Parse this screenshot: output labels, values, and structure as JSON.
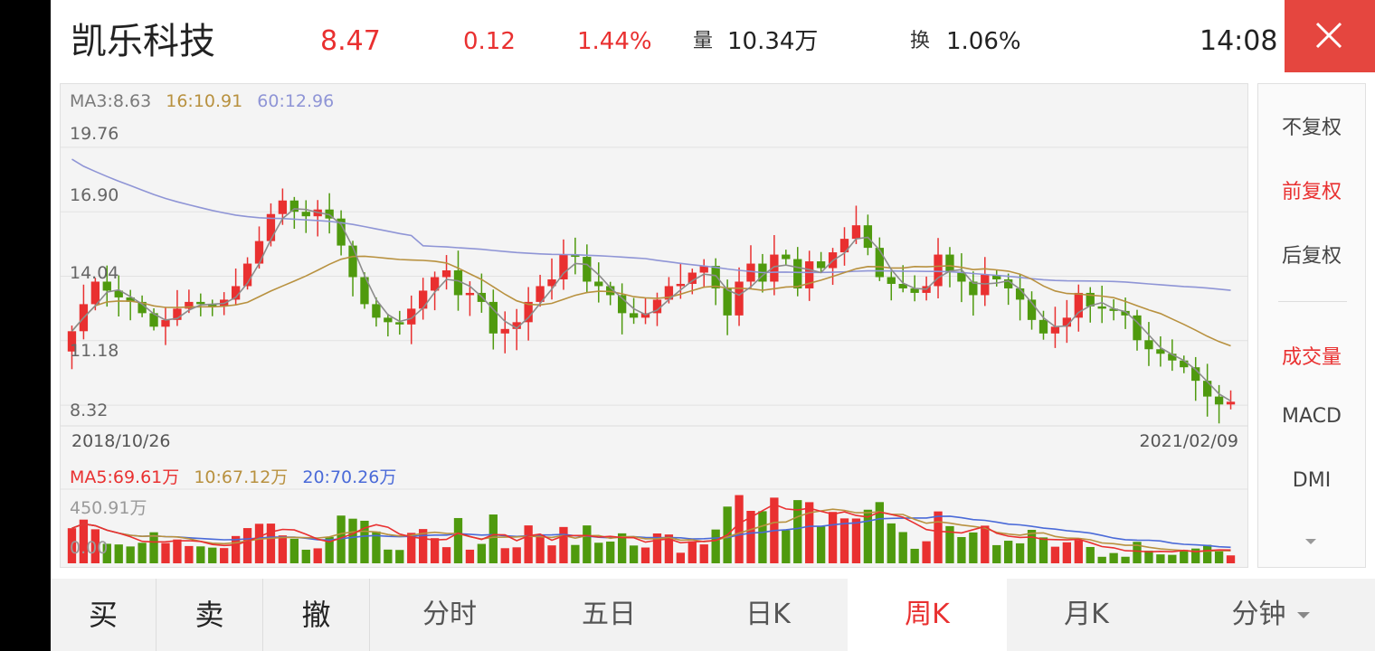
{
  "header": {
    "name": "凯乐科技",
    "price": "8.47",
    "change": "0.12",
    "change_pct": "1.44%",
    "volume_label": "量",
    "volume_value": "10.34万",
    "turnover_label": "换",
    "turnover_value": "1.06%",
    "time": "14:08",
    "close_icon": "close-icon"
  },
  "price_panel": {
    "ma_legend": [
      {
        "text": "MA3:8.63",
        "color": "#7a7a7a"
      },
      {
        "text": "16:10.91",
        "color": "#b8913f"
      },
      {
        "text": "60:12.96",
        "color": "#8f95d6"
      }
    ],
    "y_labels": [
      "19.76",
      "16.90",
      "14.04",
      "11.18",
      "8.32"
    ],
    "start_date": "2018/10/26",
    "end_date": "2021/02/09"
  },
  "volume_panel": {
    "ma_legend": [
      {
        "text": "MA5:69.61万",
        "color": "#e93030"
      },
      {
        "text": "10:67.12万",
        "color": "#b8913f"
      },
      {
        "text": "20:70.26万",
        "color": "#4a6ad8"
      }
    ],
    "max_label": "450.91万",
    "min_label": "0.00"
  },
  "right_panel": {
    "adjust_options": [
      {
        "label": "不复权",
        "active": false
      },
      {
        "label": "前复权",
        "active": true
      },
      {
        "label": "后复权",
        "active": false
      }
    ],
    "indicator_options": [
      {
        "label": "成交量",
        "active": true
      },
      {
        "label": "MACD",
        "active": false
      },
      {
        "label": "DMI",
        "active": false
      }
    ],
    "more_icon": "chevron-down-icon"
  },
  "bottom_bar": {
    "trade_buttons": [
      "买",
      "卖",
      "撤"
    ],
    "period_tabs": [
      {
        "label": "分时",
        "active": false
      },
      {
        "label": "五日",
        "active": false
      },
      {
        "label": "日K",
        "active": false
      },
      {
        "label": "周K",
        "active": true
      },
      {
        "label": "月K",
        "active": false
      },
      {
        "label": "分钟",
        "active": false,
        "dropdown": true
      }
    ]
  },
  "colors": {
    "up": "#e93030",
    "down": "#4f9a0e",
    "ma3": "#8c8c8c",
    "ma16": "#b8913f",
    "ma60": "#8f95d6",
    "vma5": "#e93030",
    "vma10": "#b8913f",
    "vma20": "#4a6ad8"
  },
  "chart_data": {
    "type": "candlestick",
    "interval": "weekly",
    "x_range": [
      "2018/10/26",
      "2021/02/09"
    ],
    "y_ticks": [
      19.76,
      16.9,
      14.04,
      11.18,
      8.32
    ],
    "ylim": [
      7.4,
      20.8
    ],
    "close": [
      11.6,
      12.8,
      13.8,
      13.4,
      13.1,
      12.9,
      12.4,
      11.8,
      12.1,
      12.6,
      12.9,
      12.8,
      12.7,
      13.0,
      13.6,
      14.6,
      15.6,
      16.8,
      17.4,
      16.9,
      16.7,
      17.0,
      16.6,
      15.4,
      14.0,
      12.8,
      12.2,
      12.0,
      11.9,
      12.6,
      13.4,
      14.0,
      14.3,
      13.2,
      13.3,
      12.9,
      11.5,
      11.7,
      12.0,
      12.9,
      13.6,
      13.9,
      15.0,
      14.9,
      13.8,
      13.6,
      13.2,
      12.4,
      12.2,
      12.4,
      13.0,
      13.6,
      13.7,
      14.2,
      14.5,
      13.5,
      12.3,
      13.8,
      14.6,
      13.8,
      15.0,
      14.8,
      13.5,
      14.7,
      14.4,
      15.1,
      15.7,
      16.3,
      15.3,
      14.0,
      13.7,
      13.5,
      13.3,
      13.6,
      15.0,
      14.2,
      13.8,
      13.2,
      14.1,
      13.9,
      13.5,
      13.0,
      12.1,
      11.5,
      11.8,
      12.2,
      13.3,
      12.7,
      12.6,
      12.5,
      12.3,
      11.2,
      10.8,
      10.6,
      10.3,
      10.0,
      9.4,
      8.7,
      8.35,
      8.47
    ],
    "volume_ma": {
      "MA5": 69.61,
      "MA10": 67.12,
      "MA20": 70.26
    },
    "volume_max": 450.91,
    "volume_unit": "万"
  }
}
